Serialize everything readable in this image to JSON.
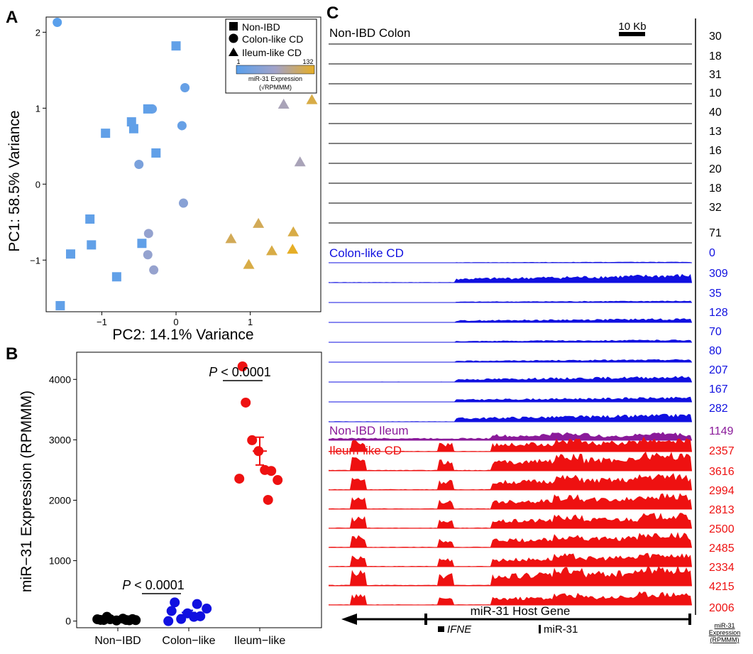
{
  "colors": {
    "non_ibd": "#000000",
    "colon_like": "#1010e0",
    "ileum_like": "#ee1111",
    "non_ibd_ileum": "#8a1a9a",
    "gradient_low": "#5aa0ec",
    "gradient_mid": "#a2a2c8",
    "gradient_high": "#e6ae26"
  },
  "panels": {
    "a": "A",
    "b": "B",
    "c": "C"
  },
  "chart_data": [
    {
      "type": "scatter",
      "panel": "A",
      "xlabel": "PC2: 14.1% Variance",
      "ylabel": "PC1: 58.5% Variance",
      "xlim": [
        -1.75,
        1.95
      ],
      "ylim": [
        -1.68,
        2.2
      ],
      "xticks": [
        -1,
        0,
        1
      ],
      "yticks": [
        -1,
        0,
        1,
        2
      ],
      "legend": {
        "position": "top-right",
        "items": [
          {
            "shape": "square",
            "label": "Non-IBD"
          },
          {
            "shape": "circle",
            "label": "Colon-like CD"
          },
          {
            "shape": "triangle",
            "label": "Ileum-like CD"
          }
        ],
        "colorbar_min": "1",
        "colorbar_max": "132",
        "colorbar_title": "miR-31 Expression",
        "colorbar_unit": "(√RPMMM)"
      },
      "points": [
        {
          "x": -1.6,
          "y": 2.13,
          "shape": "circle",
          "level": 0.0
        },
        {
          "x": 0.12,
          "y": 1.27,
          "shape": "circle",
          "level": 0.08
        },
        {
          "x": -0.32,
          "y": 0.99,
          "shape": "circle",
          "level": 0.08
        },
        {
          "x": 0.08,
          "y": 0.77,
          "shape": "circle",
          "level": 0.08
        },
        {
          "x": -0.5,
          "y": 0.26,
          "shape": "circle",
          "level": 0.22
        },
        {
          "x": 0.1,
          "y": -0.25,
          "shape": "circle",
          "level": 0.32
        },
        {
          "x": -0.37,
          "y": -0.65,
          "shape": "circle",
          "level": 0.4
        },
        {
          "x": -0.38,
          "y": -0.93,
          "shape": "circle",
          "level": 0.4
        },
        {
          "x": -0.3,
          "y": -1.13,
          "shape": "circle",
          "level": 0.42
        },
        {
          "x": 0.0,
          "y": 1.82,
          "shape": "square",
          "level": 0.05
        },
        {
          "x": -0.38,
          "y": 0.99,
          "shape": "square",
          "level": 0.05
        },
        {
          "x": -0.6,
          "y": 0.82,
          "shape": "square",
          "level": 0.05
        },
        {
          "x": -0.57,
          "y": 0.73,
          "shape": "square",
          "level": 0.05
        },
        {
          "x": -0.95,
          "y": 0.67,
          "shape": "square",
          "level": 0.05
        },
        {
          "x": -0.27,
          "y": 0.41,
          "shape": "square",
          "level": 0.05
        },
        {
          "x": -1.16,
          "y": -0.46,
          "shape": "square",
          "level": 0.05
        },
        {
          "x": -1.14,
          "y": -0.8,
          "shape": "square",
          "level": 0.05
        },
        {
          "x": -0.46,
          "y": -0.78,
          "shape": "square",
          "level": 0.05
        },
        {
          "x": -1.42,
          "y": -0.92,
          "shape": "square",
          "level": 0.05
        },
        {
          "x": -0.8,
          "y": -1.22,
          "shape": "square",
          "level": 0.05
        },
        {
          "x": -1.56,
          "y": -1.6,
          "shape": "square",
          "level": 0.05
        },
        {
          "x": 1.45,
          "y": 1.05,
          "shape": "triangle",
          "level": 0.55
        },
        {
          "x": 1.83,
          "y": 1.11,
          "shape": "triangle",
          "level": 0.9
        },
        {
          "x": 1.67,
          "y": 0.29,
          "shape": "triangle",
          "level": 0.55
        },
        {
          "x": 0.74,
          "y": -0.72,
          "shape": "triangle",
          "level": 0.85
        },
        {
          "x": 1.11,
          "y": -0.52,
          "shape": "triangle",
          "level": 0.85
        },
        {
          "x": 0.98,
          "y": -1.06,
          "shape": "triangle",
          "level": 0.9
        },
        {
          "x": 1.29,
          "y": -0.88,
          "shape": "triangle",
          "level": 0.9
        },
        {
          "x": 1.58,
          "y": -0.63,
          "shape": "triangle",
          "level": 0.9
        },
        {
          "x": 1.57,
          "y": -0.86,
          "shape": "triangle",
          "level": 1.0
        }
      ]
    },
    {
      "type": "scatter",
      "panel": "B",
      "categories": [
        "Non−IBD",
        "Colon−like",
        "Ileum−like"
      ],
      "ylabel": "miR−31 Expression (RPMMM)",
      "ylim": [
        -110,
        4450
      ],
      "yticks": [
        0,
        1000,
        2000,
        3000,
        4000
      ],
      "groups": [
        {
          "category": "Non−IBD",
          "color": "#000000",
          "values": [
            30,
            18,
            31,
            10,
            40,
            13,
            16,
            20,
            18,
            32,
            71
          ],
          "mean": 27,
          "sem": 5
        },
        {
          "category": "Colon−like",
          "color": "#1010e0",
          "values": [
            0,
            309,
            35,
            128,
            70,
            80,
            207,
            167,
            282
          ],
          "mean": 142,
          "sem": 35
        },
        {
          "category": "Ileum−like",
          "color": "#ee1111",
          "values": [
            2357,
            3616,
            2994,
            2813,
            2500,
            2485,
            2334,
            4215,
            2006
          ],
          "mean": 2813,
          "sem": 230
        }
      ],
      "annotations": [
        {
          "p_italic": "P",
          "text": " < 0.0001",
          "between": [
            "Non−IBD",
            "Colon−like"
          ]
        },
        {
          "p_italic": "P",
          "text": " < 0.0001",
          "between": [
            "Colon−like",
            "Ileum−like"
          ]
        }
      ]
    },
    {
      "type": "area",
      "panel": "C",
      "scale_bar": "10 Kb",
      "value_header": "miR-31 Expression (RPMMM)",
      "gene_label": "miR-31 Host Gene",
      "sub_gene_1": "IFNE",
      "sub_gene_2": "miR-31",
      "groups": [
        {
          "name": "Non-IBD Colon",
          "color": "#000000",
          "values": [
            "30",
            "18",
            "31",
            "10",
            "40",
            "13",
            "16",
            "20",
            "18",
            "32",
            "71"
          ]
        },
        {
          "name": "Colon-like CD",
          "color": "#1010e0",
          "values": [
            "0",
            "309",
            "35",
            "128",
            "70",
            "80",
            "207",
            "167",
            "282"
          ]
        },
        {
          "name": "Non-IBD Ileum",
          "color": "#8a1a9a",
          "values": [
            "1149"
          ]
        },
        {
          "name": "Ileum-like CD",
          "color": "#ee1111",
          "values": [
            "2357",
            "3616",
            "2994",
            "2813",
            "2500",
            "2485",
            "2334",
            "4215",
            "2006"
          ]
        }
      ]
    }
  ]
}
